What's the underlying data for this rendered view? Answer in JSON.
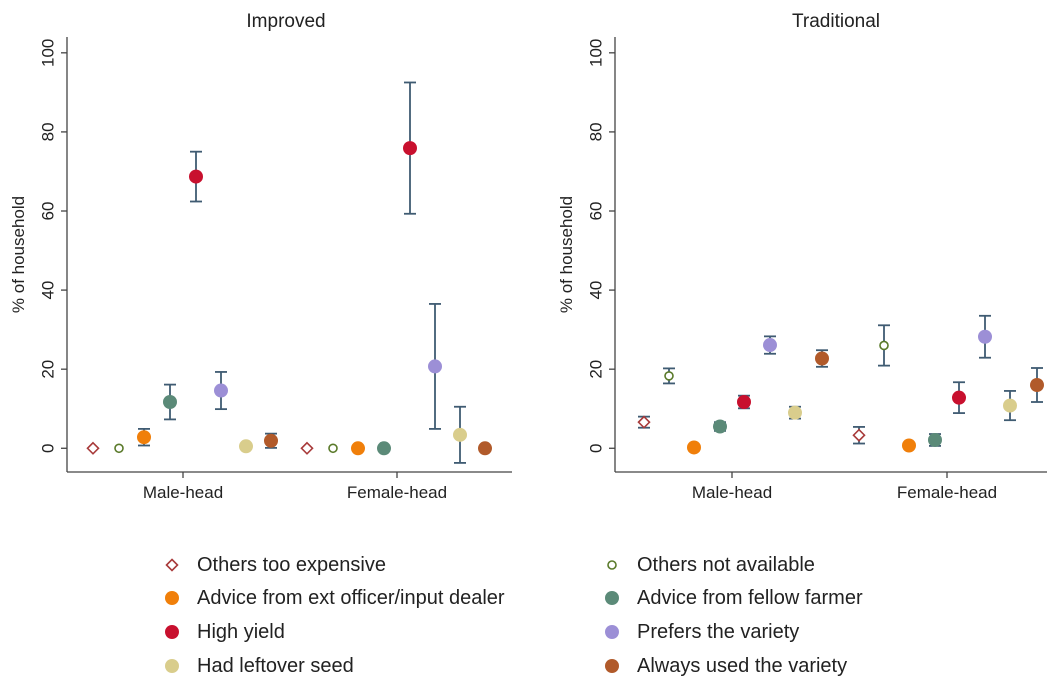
{
  "chart_data": {
    "type": "scatter",
    "subtype": "point-with-error-bars",
    "categories": [
      "Male-head",
      "Female-head"
    ],
    "ylabel": "% of household",
    "ylim": [
      -6,
      104
    ],
    "yticks": [
      0,
      20,
      40,
      60,
      80,
      100
    ],
    "grid": false,
    "legend_position": "bottom",
    "legend": [
      {
        "name": "Others too expensive",
        "marker": "diamond-hollow",
        "color": "#a83a3a"
      },
      {
        "name": "Others not available",
        "marker": "circle-hollow",
        "color": "#5a7a2a"
      },
      {
        "name": "Advice from ext officer/input dealer",
        "marker": "circle",
        "color": "#f07f0a"
      },
      {
        "name": "Advice from fellow farmer",
        "marker": "circle",
        "color": "#5b8a78"
      },
      {
        "name": "High yield",
        "marker": "circle",
        "color": "#c8102e"
      },
      {
        "name": "Prefers the variety",
        "marker": "circle",
        "color": "#9c8fd6"
      },
      {
        "name": "Had leftover seed",
        "marker": "circle",
        "color": "#d9cd8c"
      },
      {
        "name": "Always used the variety",
        "marker": "circle",
        "color": "#b15a2a"
      }
    ],
    "panels": [
      {
        "title": "Improved",
        "series": [
          {
            "name": "Others too expensive",
            "values": [
              0,
              0
            ],
            "lower": [
              null,
              null
            ],
            "upper": [
              null,
              null
            ]
          },
          {
            "name": "Others not available",
            "values": [
              0,
              0
            ],
            "lower": [
              null,
              null
            ],
            "upper": [
              null,
              null
            ]
          },
          {
            "name": "Advice from ext officer/input dealer",
            "values": [
              2.8,
              0
            ],
            "lower": [
              0.7,
              null
            ],
            "upper": [
              4.9,
              null
            ]
          },
          {
            "name": "Advice from fellow farmer",
            "values": [
              11.7,
              0
            ],
            "lower": [
              7.3,
              null
            ],
            "upper": [
              16.1,
              null
            ]
          },
          {
            "name": "High yield",
            "values": [
              68.7,
              75.9
            ],
            "lower": [
              62.4,
              59.3
            ],
            "upper": [
              75.0,
              92.5
            ]
          },
          {
            "name": "Prefers the variety",
            "values": [
              14.6,
              20.7
            ],
            "lower": [
              9.9,
              4.9
            ],
            "upper": [
              19.3,
              36.5
            ]
          },
          {
            "name": "Had leftover seed",
            "values": [
              0.5,
              3.4
            ],
            "lower": [
              null,
              -3.7
            ],
            "upper": [
              null,
              10.5
            ]
          },
          {
            "name": "Always used the variety",
            "values": [
              1.9,
              0
            ],
            "lower": [
              0.1,
              null
            ],
            "upper": [
              3.7,
              null
            ]
          }
        ]
      },
      {
        "title": "Traditional",
        "series": [
          {
            "name": "Others too expensive",
            "values": [
              6.6,
              3.3
            ],
            "lower": [
              5.2,
              1.2
            ],
            "upper": [
              8.0,
              5.4
            ]
          },
          {
            "name": "Others not available",
            "values": [
              18.3,
              26.0
            ],
            "lower": [
              16.4,
              20.9
            ],
            "upper": [
              20.2,
              31.1
            ]
          },
          {
            "name": "Advice from ext officer/input dealer",
            "values": [
              0.2,
              0.7
            ],
            "lower": [
              null,
              0.1
            ],
            "upper": [
              null,
              1.3
            ]
          },
          {
            "name": "Advice from fellow farmer",
            "values": [
              5.5,
              2.1
            ],
            "lower": [
              4.4,
              0.6
            ],
            "upper": [
              6.6,
              3.6
            ]
          },
          {
            "name": "High yield",
            "values": [
              11.7,
              12.8
            ],
            "lower": [
              10.1,
              8.9
            ],
            "upper": [
              13.3,
              16.7
            ]
          },
          {
            "name": "Prefers the variety",
            "values": [
              26.1,
              28.2
            ],
            "lower": [
              23.9,
              22.9
            ],
            "upper": [
              28.3,
              33.5
            ]
          },
          {
            "name": "Had leftover seed",
            "values": [
              9.0,
              10.8
            ],
            "lower": [
              7.5,
              7.1
            ],
            "upper": [
              10.5,
              14.5
            ]
          },
          {
            "name": "Always used the variety",
            "values": [
              22.7,
              16.0
            ],
            "lower": [
              20.6,
              11.7
            ],
            "upper": [
              24.8,
              20.3
            ]
          }
        ]
      }
    ]
  }
}
